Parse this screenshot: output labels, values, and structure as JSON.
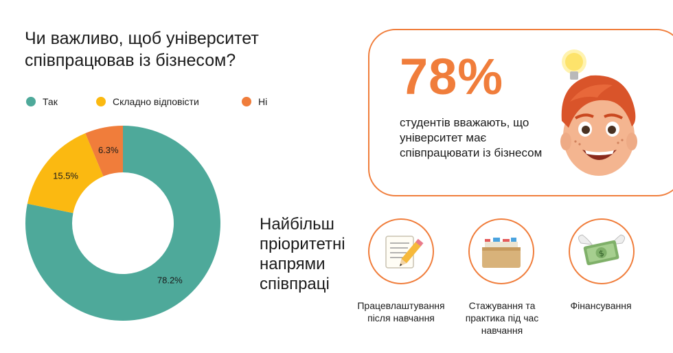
{
  "question": "Чи важливо, щоб університет співпрацював із бізнесом?",
  "legend": [
    {
      "label": "Так",
      "color": "#4ea99a"
    },
    {
      "label": "Складно відповісти",
      "color": "#fbb911"
    },
    {
      "label": "Ні",
      "color": "#f07d3b"
    }
  ],
  "chart_data": {
    "type": "pie",
    "donut": true,
    "title": "Чи важливо, щоб університет співпрацював із бізнесом?",
    "categories": [
      "Так",
      "Складно відповісти",
      "Ні"
    ],
    "values": [
      78.2,
      15.5,
      6.3
    ],
    "data_labels": [
      "78.2%",
      "15.5%",
      "6.3%"
    ],
    "colors": [
      "#4ea99a",
      "#fbb911",
      "#f07d3b"
    ],
    "legend_position": "top"
  },
  "stat": {
    "value": "78%",
    "text": "студентів вважають, що університет має співпрацювати із бізнесом",
    "accent": "#f07d3b",
    "illustration": "memoji-lightbulb-icon"
  },
  "priorities": {
    "title": "Найбільш пріоритетні напрями співпраці",
    "items": [
      {
        "label": "Працевлаштування після навчання",
        "icon": "memo-pencil-icon"
      },
      {
        "label": "Стажування та практика під час навчання",
        "icon": "card-file-box-icon"
      },
      {
        "label": "Фінансування",
        "icon": "money-with-wings-icon"
      }
    ]
  }
}
